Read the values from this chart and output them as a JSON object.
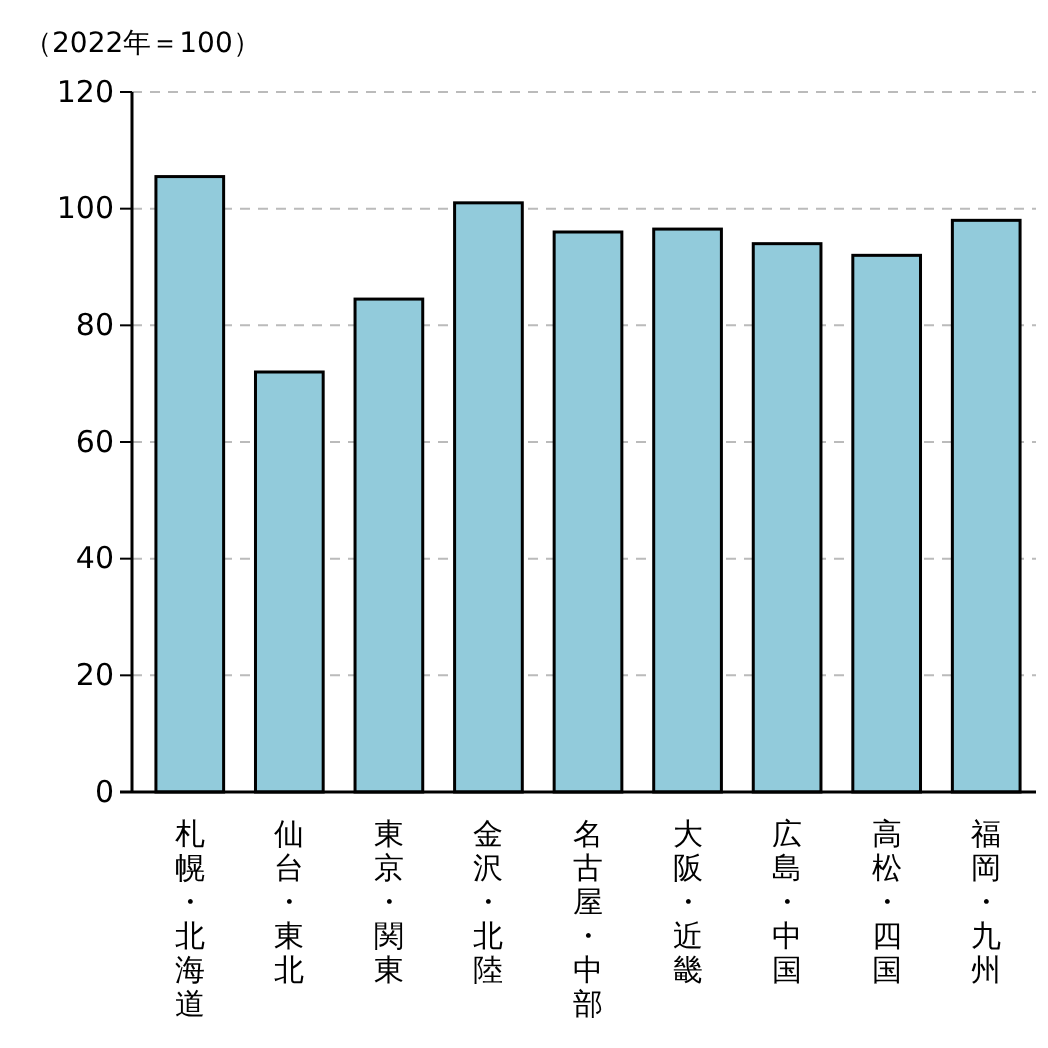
{
  "chart_data": {
    "type": "bar",
    "subtitle": "（2022年＝100）",
    "categories": [
      "札幌・北海道",
      "仙台・東北",
      "東京・関東",
      "金沢・北陸",
      "名古屋・中部",
      "大阪・近畿",
      "広島・中国",
      "高松・四国",
      "福岡・九州"
    ],
    "values": [
      105.5,
      72,
      84.5,
      101,
      96,
      96.5,
      94,
      92,
      98
    ],
    "color": "#92cbdb",
    "ylim": [
      0,
      120
    ],
    "yticks": [
      0,
      20,
      40,
      60,
      80,
      100,
      120
    ],
    "grid": "y"
  }
}
